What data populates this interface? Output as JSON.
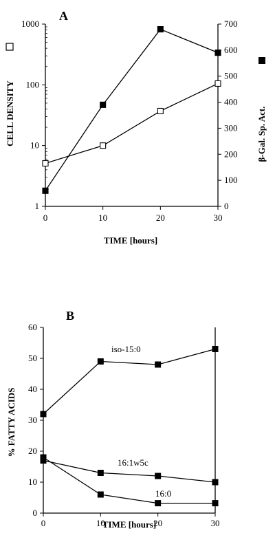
{
  "chart_data": [
    {
      "panel": "A",
      "type": "line",
      "x": [
        0,
        10,
        20,
        30
      ],
      "xlabel": "TIME [hours]",
      "xlim": [
        0,
        30
      ],
      "xticks": [
        "0",
        "10",
        "20",
        "30"
      ],
      "ylabel": "CELL DENSITY",
      "ylabel_marker": "□",
      "yscale": "log",
      "ylim": [
        1,
        1000
      ],
      "yticks": [
        "1",
        "10",
        "100",
        "1000"
      ],
      "y2label": "β-Gal. Sp. Act.",
      "y2label_marker": "■",
      "y2lim": [
        0,
        700
      ],
      "y2ticks": [
        "0",
        "100",
        "200",
        "300",
        "400",
        "500",
        "600",
        "700"
      ],
      "grid": false,
      "series": [
        {
          "axis": "left",
          "marker": "open-square",
          "values": [
            5.1,
            10,
            37,
            105
          ]
        },
        {
          "axis": "right",
          "marker": "filled-square",
          "values": [
            60,
            390,
            680,
            590
          ]
        }
      ]
    },
    {
      "panel": "B",
      "type": "line",
      "x": [
        0,
        10,
        20,
        30
      ],
      "xlabel": "TIME [hours]",
      "xlim": [
        0,
        30
      ],
      "xticks": [
        "0",
        "10",
        "20",
        "30"
      ],
      "ylabel": "% FATTY ACIDS",
      "ylim": [
        0,
        60
      ],
      "yticks": [
        "0",
        "10",
        "20",
        "30",
        "40",
        "50",
        "60"
      ],
      "grid": false,
      "series": [
        {
          "name": "iso-15:0",
          "marker": "filled-square",
          "values": [
            32,
            49,
            48,
            53
          ]
        },
        {
          "name": "16:1w5c",
          "marker": "filled-square",
          "values": [
            17,
            13,
            12,
            10
          ]
        },
        {
          "name": "16:0",
          "marker": "filled-square",
          "values": [
            18,
            6,
            3.2,
            3.2
          ]
        }
      ]
    }
  ]
}
